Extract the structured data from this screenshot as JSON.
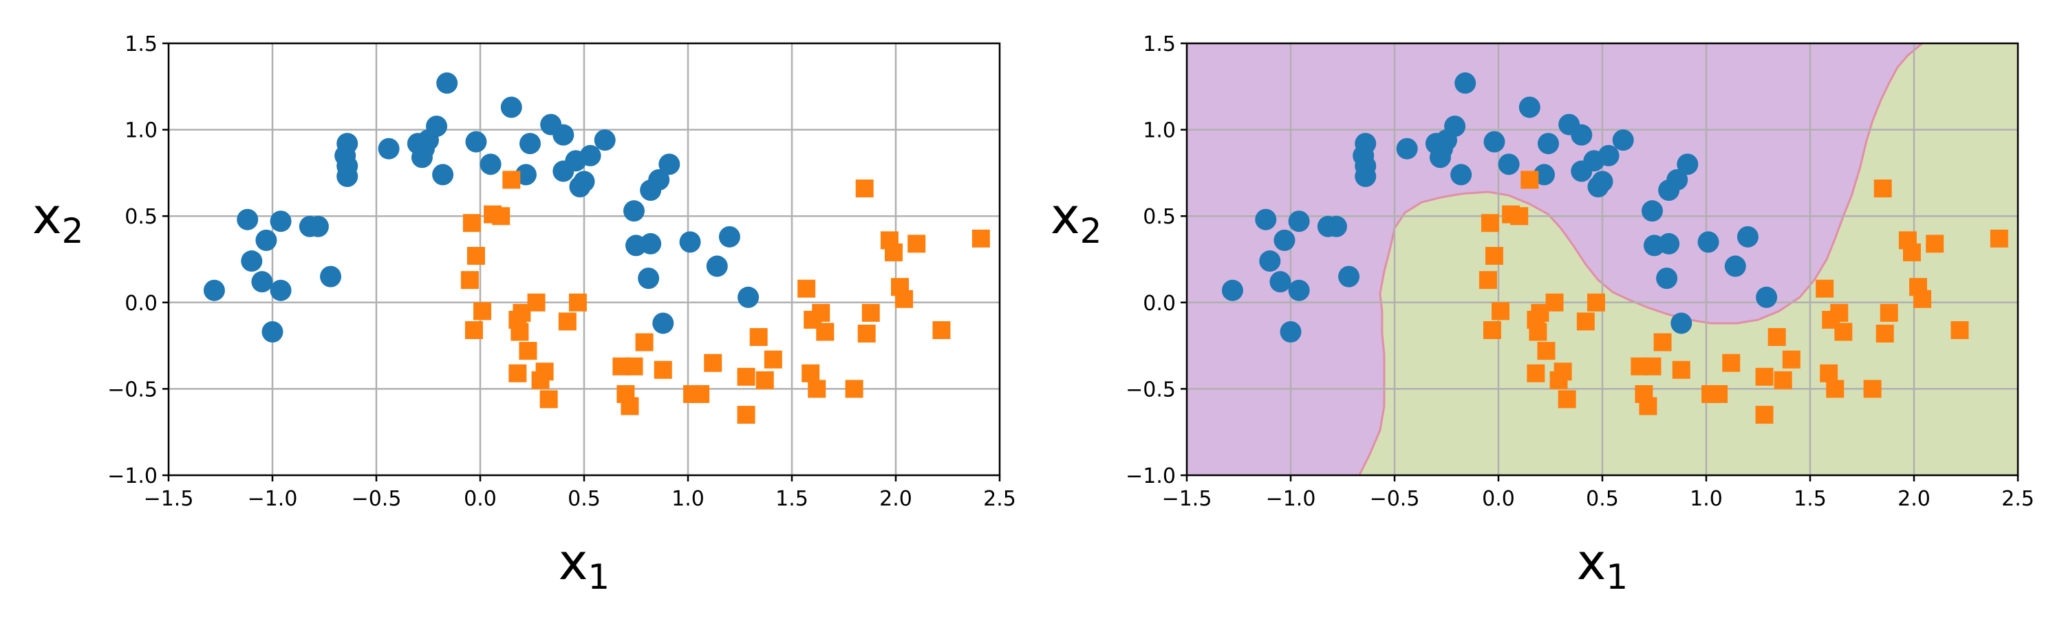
{
  "chart_data": [
    {
      "type": "scatter",
      "title": "",
      "xlabel": "x",
      "xlabel_sub": "1",
      "ylabel": "x",
      "ylabel_sub": "2",
      "xlim": [
        -1.5,
        2.5
      ],
      "ylim": [
        -1.0,
        1.5
      ],
      "xticks": [
        -1.5,
        -1.0,
        -0.5,
        0.0,
        0.5,
        1.0,
        1.5,
        2.0,
        2.5
      ],
      "yticks": [
        -1.0,
        -0.5,
        0.0,
        0.5,
        1.0,
        1.5
      ],
      "xtick_labels": [
        "−1.5",
        "−1.0",
        "−0.5",
        "0.0",
        "0.5",
        "1.0",
        "1.5",
        "2.0",
        "2.5"
      ],
      "ytick_labels": [
        "−1.0",
        "−0.5",
        "0.0",
        "0.5",
        "1.0",
        "1.5"
      ],
      "grid": true,
      "decision_regions": false,
      "series": [
        {
          "marker": "circle",
          "color": "#1f77b4",
          "points": [
            [
              -1.28,
              0.07
            ],
            [
              -1.12,
              0.48
            ],
            [
              -1.1,
              0.24
            ],
            [
              -1.05,
              0.12
            ],
            [
              -1.03,
              0.36
            ],
            [
              -1.0,
              -0.17
            ],
            [
              -0.96,
              0.47
            ],
            [
              -0.96,
              0.07
            ],
            [
              -0.82,
              0.44
            ],
            [
              -0.78,
              0.44
            ],
            [
              -0.72,
              0.15
            ],
            [
              -0.65,
              0.85
            ],
            [
              -0.64,
              0.92
            ],
            [
              -0.64,
              0.79
            ],
            [
              -0.64,
              0.73
            ],
            [
              -0.44,
              0.89
            ],
            [
              -0.3,
              0.92
            ],
            [
              -0.28,
              0.84
            ],
            [
              -0.27,
              0.89
            ],
            [
              -0.25,
              0.94
            ],
            [
              -0.21,
              1.02
            ],
            [
              -0.18,
              0.74
            ],
            [
              -0.16,
              1.27
            ],
            [
              -0.02,
              0.93
            ],
            [
              0.05,
              0.8
            ],
            [
              0.15,
              1.13
            ],
            [
              0.22,
              0.74
            ],
            [
              0.24,
              0.92
            ],
            [
              0.34,
              1.03
            ],
            [
              0.4,
              0.97
            ],
            [
              0.4,
              0.76
            ],
            [
              0.46,
              0.82
            ],
            [
              0.48,
              0.67
            ],
            [
              0.5,
              0.7
            ],
            [
              0.53,
              0.85
            ],
            [
              0.6,
              0.94
            ],
            [
              0.74,
              0.53
            ],
            [
              0.75,
              0.33
            ],
            [
              0.81,
              0.14
            ],
            [
              0.82,
              0.34
            ],
            [
              0.82,
              0.65
            ],
            [
              0.86,
              0.71
            ],
            [
              0.88,
              -0.12
            ],
            [
              0.91,
              0.8
            ],
            [
              1.01,
              0.35
            ],
            [
              1.14,
              0.21
            ],
            [
              1.2,
              0.38
            ],
            [
              1.29,
              0.03
            ]
          ]
        },
        {
          "marker": "square",
          "color": "#ff7f0e",
          "points": [
            [
              -0.05,
              0.13
            ],
            [
              -0.04,
              0.46
            ],
            [
              -0.03,
              -0.16
            ],
            [
              -0.02,
              0.27
            ],
            [
              0.01,
              -0.05
            ],
            [
              0.06,
              0.51
            ],
            [
              0.1,
              0.5
            ],
            [
              0.15,
              0.71
            ],
            [
              0.18,
              -0.1
            ],
            [
              0.18,
              -0.41
            ],
            [
              0.19,
              -0.17
            ],
            [
              0.2,
              -0.06
            ],
            [
              0.23,
              -0.28
            ],
            [
              0.27,
              0.0
            ],
            [
              0.29,
              -0.45
            ],
            [
              0.31,
              -0.4
            ],
            [
              0.33,
              -0.56
            ],
            [
              0.42,
              -0.11
            ],
            [
              0.47,
              0.0
            ],
            [
              0.68,
              -0.37
            ],
            [
              0.7,
              -0.53
            ],
            [
              0.72,
              -0.6
            ],
            [
              0.74,
              -0.37
            ],
            [
              0.79,
              -0.23
            ],
            [
              0.88,
              -0.39
            ],
            [
              1.02,
              -0.53
            ],
            [
              1.06,
              -0.53
            ],
            [
              1.12,
              -0.35
            ],
            [
              1.28,
              -0.65
            ],
            [
              1.28,
              -0.43
            ],
            [
              1.34,
              -0.2
            ],
            [
              1.37,
              -0.45
            ],
            [
              1.41,
              -0.33
            ],
            [
              1.57,
              0.08
            ],
            [
              1.59,
              -0.41
            ],
            [
              1.6,
              -0.1
            ],
            [
              1.62,
              -0.5
            ],
            [
              1.64,
              -0.06
            ],
            [
              1.66,
              -0.17
            ],
            [
              1.8,
              -0.5
            ],
            [
              1.85,
              0.66
            ],
            [
              1.86,
              -0.18
            ],
            [
              1.88,
              -0.06
            ],
            [
              1.97,
              0.36
            ],
            [
              1.99,
              0.29
            ],
            [
              2.02,
              0.09
            ],
            [
              2.04,
              0.02
            ],
            [
              2.1,
              0.34
            ],
            [
              2.22,
              -0.16
            ],
            [
              2.41,
              0.37
            ]
          ]
        }
      ]
    },
    {
      "type": "scatter",
      "title": "",
      "xlabel": "x",
      "xlabel_sub": "1",
      "ylabel": "x",
      "ylabel_sub": "2",
      "xlim": [
        -1.5,
        2.5
      ],
      "ylim": [
        -1.0,
        1.5
      ],
      "xticks": [
        -1.5,
        -1.0,
        -0.5,
        0.0,
        0.5,
        1.0,
        1.5,
        2.0,
        2.5
      ],
      "yticks": [
        -1.0,
        -0.5,
        0.0,
        0.5,
        1.0,
        1.5
      ],
      "xtick_labels": [
        "−1.5",
        "−1.0",
        "−0.5",
        "0.0",
        "0.5",
        "1.0",
        "1.5",
        "2.0",
        "2.5"
      ],
      "ytick_labels": [
        "−1.0",
        "−0.5",
        "0.0",
        "0.5",
        "1.0",
        "1.5"
      ],
      "grid": true,
      "decision_regions": true,
      "region_colors": {
        "class0": "#d7b8e0",
        "class1": "#d6e0b6"
      },
      "boundary_color": "#e08fa6",
      "decision_boundary": [
        [
          -0.67,
          -1.0
        ],
        [
          -0.62,
          -0.88
        ],
        [
          -0.57,
          -0.74
        ],
        [
          -0.55,
          -0.6
        ],
        [
          -0.55,
          -0.45
        ],
        [
          -0.55,
          -0.3
        ],
        [
          -0.56,
          -0.18
        ],
        [
          -0.56,
          -0.05
        ],
        [
          -0.57,
          0.05
        ],
        [
          -0.55,
          0.18
        ],
        [
          -0.52,
          0.32
        ],
        [
          -0.5,
          0.43
        ],
        [
          -0.45,
          0.52
        ],
        [
          -0.37,
          0.58
        ],
        [
          -0.27,
          0.61
        ],
        [
          -0.17,
          0.63
        ],
        [
          -0.05,
          0.64
        ],
        [
          0.05,
          0.62
        ],
        [
          0.15,
          0.57
        ],
        [
          0.24,
          0.51
        ],
        [
          0.3,
          0.43
        ],
        [
          0.36,
          0.33
        ],
        [
          0.42,
          0.22
        ],
        [
          0.48,
          0.13
        ],
        [
          0.55,
          0.06
        ],
        [
          0.62,
          0.02
        ],
        [
          0.72,
          -0.03
        ],
        [
          0.82,
          -0.07
        ],
        [
          0.92,
          -0.1
        ],
        [
          1.02,
          -0.12
        ],
        [
          1.15,
          -0.12
        ],
        [
          1.25,
          -0.1
        ],
        [
          1.35,
          -0.05
        ],
        [
          1.45,
          0.03
        ],
        [
          1.52,
          0.13
        ],
        [
          1.58,
          0.25
        ],
        [
          1.62,
          0.37
        ],
        [
          1.66,
          0.5
        ],
        [
          1.7,
          0.62
        ],
        [
          1.74,
          0.78
        ],
        [
          1.77,
          0.93
        ],
        [
          1.8,
          1.05
        ],
        [
          1.84,
          1.17
        ],
        [
          1.88,
          1.27
        ],
        [
          1.92,
          1.36
        ],
        [
          1.97,
          1.43
        ],
        [
          2.04,
          1.5
        ]
      ],
      "series": [
        {
          "marker": "circle",
          "color": "#1f77b4",
          "points": [
            [
              -1.28,
              0.07
            ],
            [
              -1.12,
              0.48
            ],
            [
              -1.1,
              0.24
            ],
            [
              -1.05,
              0.12
            ],
            [
              -1.03,
              0.36
            ],
            [
              -1.0,
              -0.17
            ],
            [
              -0.96,
              0.47
            ],
            [
              -0.96,
              0.07
            ],
            [
              -0.82,
              0.44
            ],
            [
              -0.78,
              0.44
            ],
            [
              -0.72,
              0.15
            ],
            [
              -0.65,
              0.85
            ],
            [
              -0.64,
              0.92
            ],
            [
              -0.64,
              0.79
            ],
            [
              -0.64,
              0.73
            ],
            [
              -0.44,
              0.89
            ],
            [
              -0.3,
              0.92
            ],
            [
              -0.28,
              0.84
            ],
            [
              -0.27,
              0.89
            ],
            [
              -0.25,
              0.94
            ],
            [
              -0.21,
              1.02
            ],
            [
              -0.18,
              0.74
            ],
            [
              -0.16,
              1.27
            ],
            [
              -0.02,
              0.93
            ],
            [
              0.05,
              0.8
            ],
            [
              0.15,
              1.13
            ],
            [
              0.22,
              0.74
            ],
            [
              0.24,
              0.92
            ],
            [
              0.34,
              1.03
            ],
            [
              0.4,
              0.97
            ],
            [
              0.4,
              0.76
            ],
            [
              0.46,
              0.82
            ],
            [
              0.48,
              0.67
            ],
            [
              0.5,
              0.7
            ],
            [
              0.53,
              0.85
            ],
            [
              0.6,
              0.94
            ],
            [
              0.74,
              0.53
            ],
            [
              0.75,
              0.33
            ],
            [
              0.81,
              0.14
            ],
            [
              0.82,
              0.34
            ],
            [
              0.82,
              0.65
            ],
            [
              0.86,
              0.71
            ],
            [
              0.88,
              -0.12
            ],
            [
              0.91,
              0.8
            ],
            [
              1.01,
              0.35
            ],
            [
              1.14,
              0.21
            ],
            [
              1.2,
              0.38
            ],
            [
              1.29,
              0.03
            ]
          ]
        },
        {
          "marker": "square",
          "color": "#ff7f0e",
          "points": [
            [
              -0.05,
              0.13
            ],
            [
              -0.04,
              0.46
            ],
            [
              -0.03,
              -0.16
            ],
            [
              -0.02,
              0.27
            ],
            [
              0.01,
              -0.05
            ],
            [
              0.06,
              0.51
            ],
            [
              0.1,
              0.5
            ],
            [
              0.15,
              0.71
            ],
            [
              0.18,
              -0.1
            ],
            [
              0.18,
              -0.41
            ],
            [
              0.19,
              -0.17
            ],
            [
              0.2,
              -0.06
            ],
            [
              0.23,
              -0.28
            ],
            [
              0.27,
              0.0
            ],
            [
              0.29,
              -0.45
            ],
            [
              0.31,
              -0.4
            ],
            [
              0.33,
              -0.56
            ],
            [
              0.42,
              -0.11
            ],
            [
              0.47,
              0.0
            ],
            [
              0.68,
              -0.37
            ],
            [
              0.7,
              -0.53
            ],
            [
              0.72,
              -0.6
            ],
            [
              0.74,
              -0.37
            ],
            [
              0.79,
              -0.23
            ],
            [
              0.88,
              -0.39
            ],
            [
              1.02,
              -0.53
            ],
            [
              1.06,
              -0.53
            ],
            [
              1.12,
              -0.35
            ],
            [
              1.28,
              -0.65
            ],
            [
              1.28,
              -0.43
            ],
            [
              1.34,
              -0.2
            ],
            [
              1.37,
              -0.45
            ],
            [
              1.41,
              -0.33
            ],
            [
              1.57,
              0.08
            ],
            [
              1.59,
              -0.41
            ],
            [
              1.6,
              -0.1
            ],
            [
              1.62,
              -0.5
            ],
            [
              1.64,
              -0.06
            ],
            [
              1.66,
              -0.17
            ],
            [
              1.8,
              -0.5
            ],
            [
              1.85,
              0.66
            ],
            [
              1.86,
              -0.18
            ],
            [
              1.88,
              -0.06
            ],
            [
              1.97,
              0.36
            ],
            [
              1.99,
              0.29
            ],
            [
              2.02,
              0.09
            ],
            [
              2.04,
              0.02
            ],
            [
              2.1,
              0.34
            ],
            [
              2.22,
              -0.16
            ],
            [
              2.41,
              0.37
            ]
          ]
        }
      ]
    }
  ]
}
